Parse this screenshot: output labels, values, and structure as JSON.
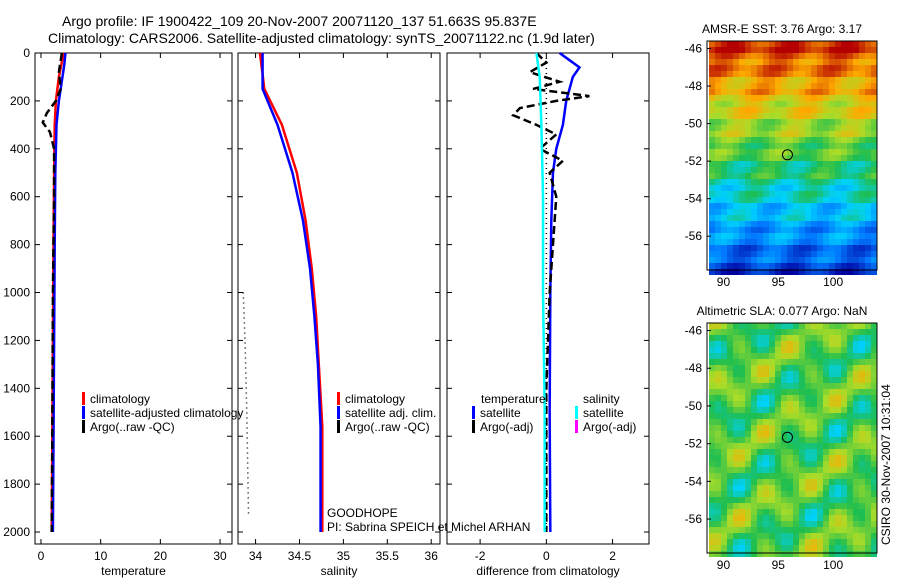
{
  "title_line1": "Argo profile: IF 1900422_109 20-Nov-2007 20071120_137 51.663S 95.837E",
  "title_line2": "Climatology: CARS2006. Satellite-adjusted climatology: synTS_20071122.nc (1.9d later)",
  "side_label": "CSIRO 30-Nov-2007 10:31:04",
  "annotation_line1": "GOODHOPE",
  "annotation_line2": "PI: Sabrina SPEICH et Michel ARHAN",
  "chart_data": [
    {
      "type": "line",
      "xlabel": "temperature",
      "ylabel": "",
      "xlim": [
        -1,
        32
      ],
      "ylim": [
        2050,
        0
      ],
      "xticks": [
        "0",
        "10",
        "20",
        "30"
      ],
      "xtick_values": [
        0,
        10,
        20,
        30
      ],
      "yticks": [
        "0",
        "200",
        "400",
        "600",
        "800",
        "1000",
        "1200",
        "1400",
        "1600",
        "1800",
        "2000"
      ],
      "legend": [
        "climatology",
        "satellite-adjusted climatology",
        "Argo(..raw -QC)"
      ],
      "series": [
        {
          "name": "climatology",
          "color": "#ff0000",
          "style": "solid",
          "depth": [
            0,
            100,
            200,
            300,
            500,
            800,
            1200,
            1600,
            2000
          ],
          "values": [
            3.8,
            3.0,
            2.5,
            2.3,
            2.2,
            2.1,
            2.0,
            1.9,
            1.8
          ]
        },
        {
          "name": "satellite-adjusted climatology",
          "color": "#0000ff",
          "style": "solid",
          "depth": [
            0,
            50,
            100,
            200,
            300,
            500,
            800,
            1200,
            1600,
            2000
          ],
          "values": [
            4.1,
            3.9,
            3.6,
            3.0,
            2.6,
            2.4,
            2.3,
            2.2,
            2.1,
            2.0
          ]
        },
        {
          "name": "Argo(..raw -QC)",
          "color": "#000000",
          "style": "dashed",
          "depth": [
            0,
            80,
            150,
            200,
            250,
            290,
            330,
            400,
            600,
            1000,
            1600,
            2000
          ],
          "values": [
            3.5,
            3.0,
            3.3,
            2.5,
            1.0,
            0.3,
            1.5,
            2.2,
            2.2,
            2.0,
            1.9,
            1.8
          ]
        }
      ]
    },
    {
      "type": "line",
      "xlabel": "salinity",
      "xlim": [
        33.8,
        36.1
      ],
      "ylim": [
        2050,
        0
      ],
      "xticks": [
        "34",
        "34.5",
        "35",
        "35.5",
        "36"
      ],
      "xtick_values": [
        34,
        34.5,
        35,
        35.5,
        36
      ],
      "legend": [
        "climatology",
        "satellite adj. clim.",
        "Argo(..raw -QC)"
      ],
      "series": [
        {
          "name": "climatology",
          "color": "#ff0000",
          "style": "solid",
          "depth": [
            0,
            150,
            300,
            500,
            700,
            900,
            1100,
            1300,
            1560,
            2000
          ],
          "values": [
            34.05,
            34.1,
            34.3,
            34.47,
            34.57,
            34.64,
            34.69,
            34.72,
            34.76,
            34.76
          ]
        },
        {
          "name": "satellite adj. clim.",
          "color": "#0000ff",
          "style": "solid",
          "depth": [
            0,
            150,
            300,
            500,
            700,
            900,
            1100,
            1300,
            1560,
            2000
          ],
          "values": [
            34.08,
            34.08,
            34.25,
            34.42,
            34.54,
            34.62,
            34.67,
            34.71,
            34.74,
            34.74
          ]
        },
        {
          "name": "Argo(..raw -QC)",
          "color": "#000000",
          "style": "dotted",
          "depth": [
            1000,
            1200,
            1500,
            1930
          ],
          "values": [
            33.86,
            33.88,
            33.9,
            33.92
          ]
        }
      ]
    },
    {
      "type": "line",
      "xlabel": "difference from climatology",
      "xlim": [
        -3,
        3.1
      ],
      "ylim": [
        2050,
        0
      ],
      "xticks": [
        "-2",
        "0",
        "2"
      ],
      "xtick_values": [
        -2,
        0,
        2
      ],
      "legend_headers": [
        "temperature",
        "salinity"
      ],
      "legend": [
        "satellite",
        "Argo(-adj)",
        "satellite",
        "Argo(-adj)"
      ],
      "legend_colors": [
        "#0000ff",
        "#000000",
        "#00ffff",
        "#ff00ff"
      ],
      "series": [
        {
          "name": "temperature satellite",
          "color": "#0000ff",
          "style": "solid",
          "depth": [
            0,
            30,
            60,
            100,
            200,
            300,
            400,
            500,
            700,
            1000,
            1500,
            2000
          ],
          "values": [
            0.4,
            0.7,
            1.0,
            0.8,
            0.6,
            0.5,
            0.3,
            0.2,
            0.15,
            0.12,
            0.1,
            0.12
          ]
        },
        {
          "name": "temperature Argo(-adj)",
          "color": "#000000",
          "style": "dashed",
          "depth": [
            0,
            40,
            80,
            120,
            150,
            180,
            200,
            230,
            260,
            300,
            340,
            400,
            450,
            500,
            600,
            800,
            1000,
            1400,
            2000
          ],
          "values": [
            -0.3,
            0,
            -0.5,
            0.4,
            -0.4,
            1.3,
            0.3,
            -0.8,
            -1.0,
            -0.3,
            0.3,
            -0.2,
            0.5,
            0.1,
            0.3,
            0.2,
            0.1,
            0,
            0
          ]
        },
        {
          "name": "salinity satellite",
          "color": "#00ffff",
          "style": "solid",
          "depth": [
            0,
            100,
            300,
            600,
            1000,
            1500,
            2000
          ],
          "values": [
            -0.3,
            -0.2,
            -0.15,
            -0.1,
            -0.1,
            -0.05,
            -0.05
          ]
        },
        {
          "name": "zero line",
          "color": "#000000",
          "style": "dotted",
          "depth": [
            0,
            2000
          ],
          "values": [
            0,
            0
          ]
        }
      ]
    },
    {
      "type": "heatmap",
      "title": "AMSR-E SST: 3.76 Argo: 3.17",
      "xlim": [
        88.5,
        104
      ],
      "ylim": [
        -57.8,
        -45.6
      ],
      "xticks": [
        "90",
        "95",
        "100"
      ],
      "yticks": [
        "-46",
        "-48",
        "-50",
        "-52",
        "-54",
        "-56"
      ],
      "marker": [
        95.837,
        -51.663
      ]
    },
    {
      "type": "heatmap",
      "title": "Altimetric SLA: 0.077 Argo: NaN",
      "xlim": [
        88.5,
        104
      ],
      "ylim": [
        -57.8,
        -45.6
      ],
      "xticks": [
        "90",
        "95",
        "100"
      ],
      "yticks": [
        "-46",
        "-48",
        "-50",
        "-52",
        "-54",
        "-56"
      ],
      "marker": [
        95.837,
        -51.663
      ]
    }
  ]
}
